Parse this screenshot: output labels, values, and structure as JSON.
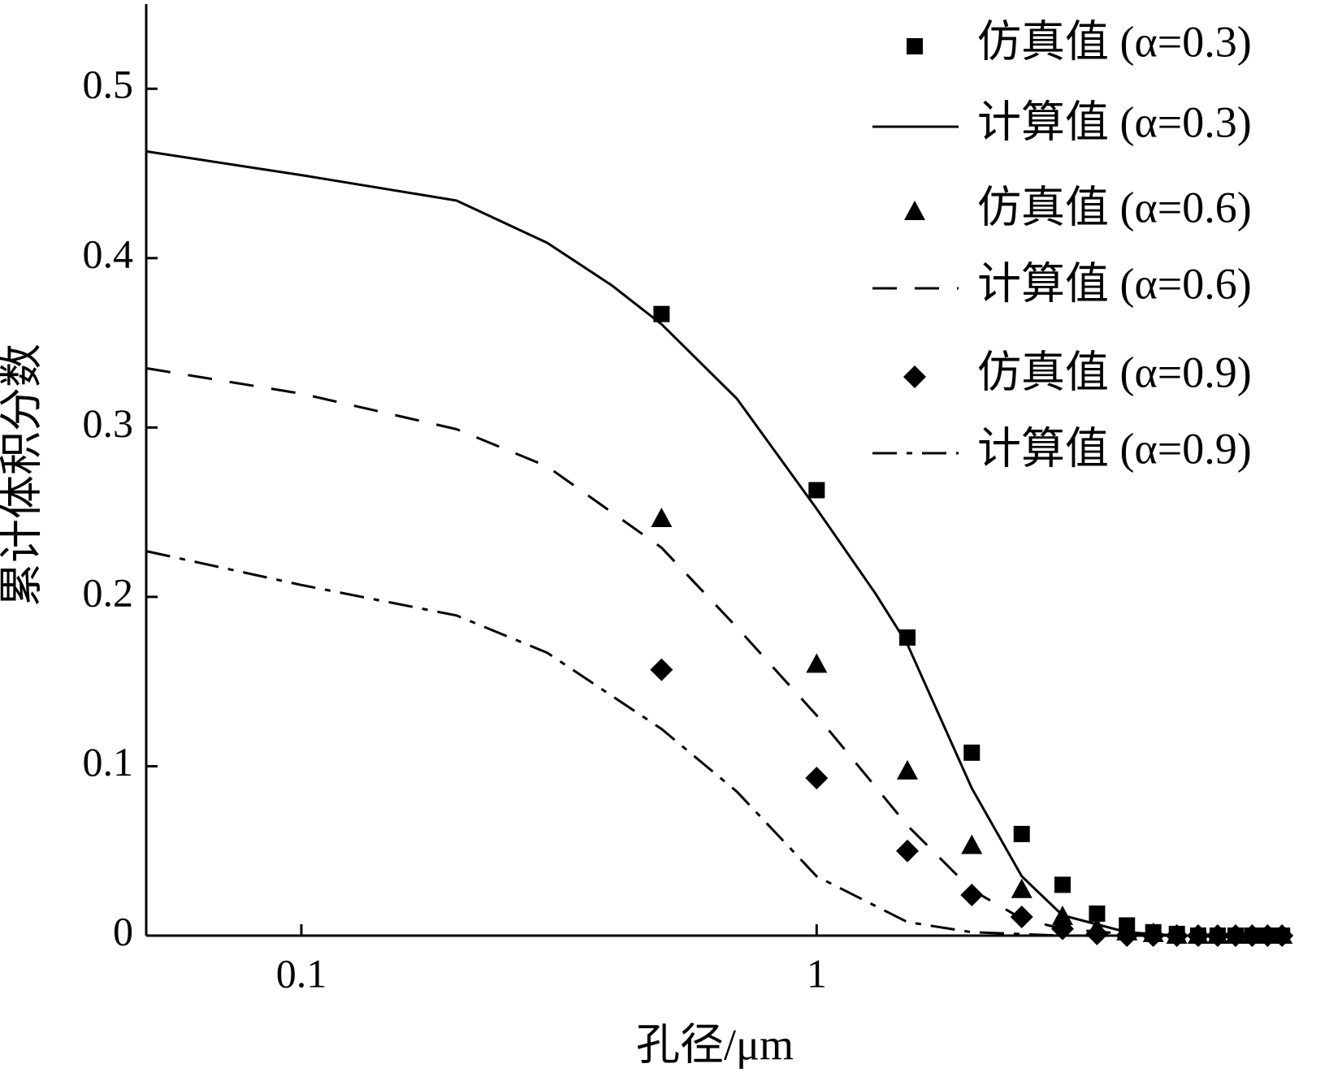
{
  "chart_data": {
    "type": "line",
    "x_label": "孔径/μm",
    "y_label": "累计体积分数",
    "xscale": "log",
    "xlim": [
      0.05,
      8.2
    ],
    "xticks": [
      0.1,
      1
    ],
    "ylim": [
      0,
      0.55
    ],
    "yticks": [
      0,
      0.1,
      0.2,
      0.3,
      0.4,
      0.5
    ],
    "legend": "upper right",
    "series": [
      {
        "name": "仿真值 (α=0.3)",
        "color": "#000000",
        "marker": "square",
        "line_style": "none",
        "x": [
          0.5,
          1,
          1.5,
          2,
          2.5,
          3,
          3.5,
          4,
          4.5,
          5,
          5.5,
          6,
          6.5,
          7,
          7.5,
          8
        ],
        "values": [
          0.367,
          0.263,
          0.176,
          0.108,
          0.06,
          0.03,
          0.013,
          0.006,
          0.002,
          0.001,
          0,
          0,
          0,
          0,
          0,
          0
        ]
      },
      {
        "name": "计算值 (α=0.3)",
        "color": "#000000",
        "marker": "none",
        "line_style": "solid",
        "x": [
          0.05,
          0.1,
          0.2,
          0.3,
          0.4,
          0.5,
          0.7,
          1,
          1.3,
          1.5,
          2,
          2.5,
          3,
          4,
          5,
          8
        ],
        "values": [
          0.463,
          0.449,
          0.434,
          0.409,
          0.384,
          0.361,
          0.317,
          0.252,
          0.202,
          0.172,
          0.087,
          0.035,
          0.012,
          0.002,
          0,
          0
        ]
      },
      {
        "name": "仿真值 (α=0.6)",
        "color": "#000000",
        "marker": "triangle",
        "line_style": "none",
        "x": [
          0.5,
          1,
          1.5,
          2,
          2.5,
          3,
          3.5,
          4,
          4.5,
          5,
          5.5,
          6,
          6.5,
          7,
          7.5,
          8
        ],
        "values": [
          0.246,
          0.16,
          0.097,
          0.053,
          0.027,
          0.011,
          0.004,
          0.002,
          0.001,
          0,
          0,
          0,
          0,
          0,
          0,
          0
        ]
      },
      {
        "name": "计算值 (α=0.6)",
        "color": "#000000",
        "marker": "none",
        "line_style": "dashed",
        "x": [
          0.05,
          0.1,
          0.2,
          0.3,
          0.5,
          0.7,
          1,
          1.5,
          2,
          2.5,
          3,
          4,
          5
        ],
        "values": [
          0.335,
          0.32,
          0.299,
          0.277,
          0.229,
          0.182,
          0.13,
          0.065,
          0.027,
          0.01,
          0.004,
          0.001,
          0
        ]
      },
      {
        "name": "仿真值 (α=0.9)",
        "color": "#000000",
        "marker": "diamond",
        "line_style": "none",
        "x": [
          0.5,
          1,
          1.5,
          2,
          2.5,
          3,
          3.5,
          4,
          4.5,
          5,
          5.5,
          6,
          6.5,
          7,
          7.5,
          8
        ],
        "values": [
          0.157,
          0.093,
          0.05,
          0.024,
          0.011,
          0.004,
          0.001,
          0,
          0,
          0,
          0,
          0,
          0,
          0,
          0,
          0
        ]
      },
      {
        "name": "计算值 (α=0.9)",
        "color": "#000000",
        "marker": "none",
        "line_style": "dashdot",
        "x": [
          0.05,
          0.1,
          0.2,
          0.3,
          0.5,
          0.7,
          1,
          1.5,
          2,
          3
        ],
        "values": [
          0.227,
          0.207,
          0.189,
          0.167,
          0.122,
          0.085,
          0.035,
          0.008,
          0.002,
          0
        ]
      }
    ]
  }
}
